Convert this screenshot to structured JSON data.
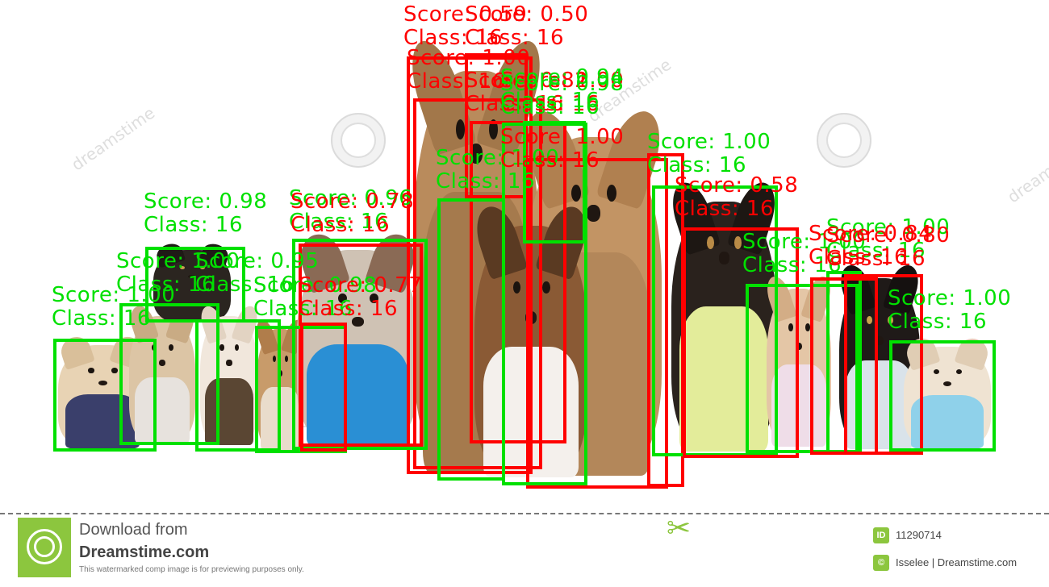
{
  "footer": {
    "download_line1": "Download from",
    "download_line2": "Dreamstime.com",
    "note": "This watermarked comp image is for previewing purposes only.",
    "image_id_icon": "ID",
    "image_id": "11290714",
    "credit_icon": "©",
    "credit": "Isselee | Dreamstime.com",
    "icons": [
      "dreamstime-spiral-logo-icon",
      "scissors-icon",
      "id-icon",
      "copyright-icon"
    ]
  },
  "watermark_text": "dreamstime",
  "colors": {
    "red_box": "#ff0000",
    "green_box": "#00e000",
    "accent": "#8cc63e"
  },
  "detections": [
    {
      "score": "Score: 0.59",
      "class": "Class: 16",
      "color": "red"
    },
    {
      "score": "Score: 0.50",
      "class": "Class: 16",
      "color": "red"
    },
    {
      "score": "Score: 1.00",
      "class": "Class: 16",
      "color": "red"
    },
    {
      "score": "Score: 0.82",
      "class": "Class: 16",
      "color": "red"
    },
    {
      "score": "Score: 1.00",
      "class": "Class: 16",
      "color": "red"
    },
    {
      "score": "Score: 0.94",
      "class": "Class: 16",
      "color": "green"
    },
    {
      "score": "Score: 0.98",
      "class": "Class: 16",
      "color": "green"
    },
    {
      "score": "Score: 1.00",
      "class": "Class: 16",
      "color": "green"
    },
    {
      "score": "Score: 1.00",
      "class": "Class: 16",
      "color": "red"
    },
    {
      "score": "Score: 1.00",
      "class": "Class: 16",
      "color": "green"
    },
    {
      "score": "Score: 0.58",
      "class": "Class: 16",
      "color": "red"
    },
    {
      "score": "Score: 0.98",
      "class": "Class: 16",
      "color": "green"
    },
    {
      "score": "Score: 0.96",
      "class": "Class: 16",
      "color": "green"
    },
    {
      "score": "Score: 0.78",
      "class": "Class: 16",
      "color": "red"
    },
    {
      "score": "Score: 1.00",
      "class": "Class: 16",
      "color": "green"
    },
    {
      "score": "Score: 0.95",
      "class": "Class: 16",
      "color": "green"
    },
    {
      "score": "Score: 1.00",
      "class": "Class: 16",
      "color": "green"
    },
    {
      "score": "Score: 0.98",
      "class": "Class: 16",
      "color": "green"
    },
    {
      "score": "Score: 0.77",
      "class": "Class: 16",
      "color": "red"
    },
    {
      "score": "Score: 1.00",
      "class": "Class: 16",
      "color": "green"
    },
    {
      "score": "Score: 1.00",
      "class": "Class: 16",
      "color": "green"
    },
    {
      "score": "Score: 0.84",
      "class": "Class: 16",
      "color": "red"
    },
    {
      "score": "Score: 0.80",
      "class": "Class: 16",
      "color": "red"
    },
    {
      "score": "Score: 1.00",
      "class": "Class: 16",
      "color": "green"
    }
  ]
}
